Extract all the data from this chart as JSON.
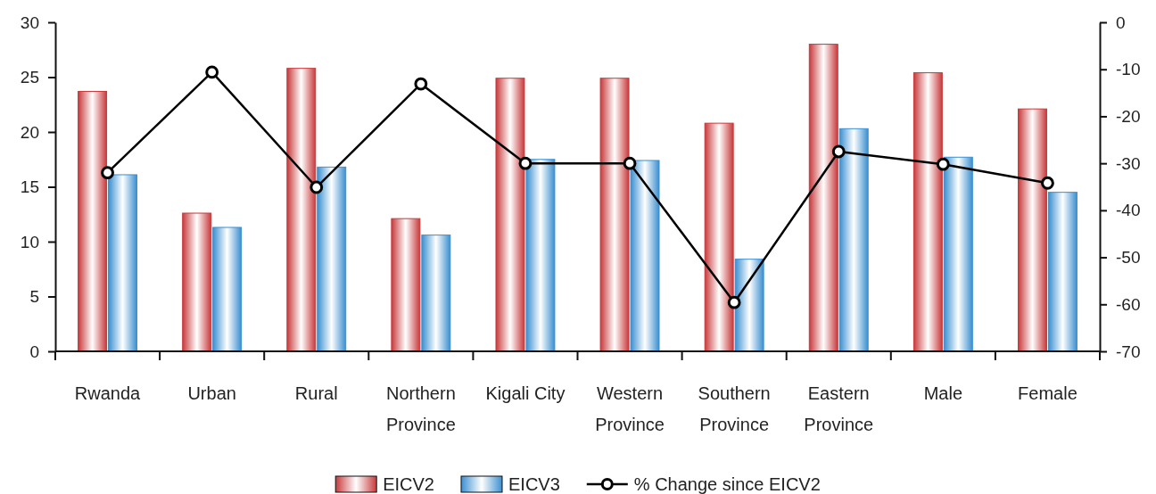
{
  "chart_data": {
    "type": "bar",
    "categories": [
      "Rwanda",
      "Urban",
      "Rural",
      "Northern Province",
      "Kigali City",
      "Western Province",
      "Southern Province",
      "Eastern Province",
      "Male",
      "Female"
    ],
    "series": [
      {
        "name": "EICV2",
        "color": "#c8393b",
        "values": [
          23.7,
          12.6,
          25.8,
          12.1,
          24.9,
          24.9,
          20.8,
          28.0,
          25.4,
          22.1
        ]
      },
      {
        "name": "EICV3",
        "color": "#3a8fd0",
        "values": [
          16.1,
          11.3,
          16.8,
          10.6,
          17.5,
          17.4,
          8.4,
          20.3,
          17.7,
          14.5
        ]
      },
      {
        "name": "% Change since EICV2",
        "type": "line",
        "axis": "y2",
        "color": "#000000",
        "marker": "circle",
        "values": [
          -32,
          -10.6,
          -35.1,
          -13.1,
          -30,
          -30,
          -59.6,
          -27.5,
          -30.2,
          -34.2
        ]
      }
    ],
    "ylim": [
      0,
      30
    ],
    "yticks": [
      0,
      5,
      10,
      15,
      20,
      25,
      30
    ],
    "y2lim": [
      -70,
      0
    ],
    "y2ticks": [
      -70,
      -60,
      -50,
      -40,
      -30,
      -20,
      -10,
      0
    ],
    "grid": false,
    "legend": "bottom"
  }
}
